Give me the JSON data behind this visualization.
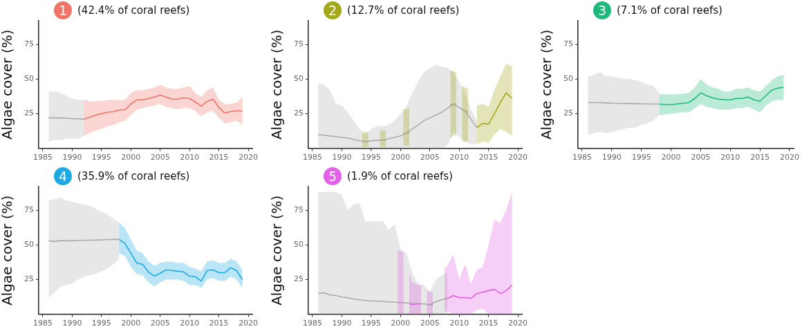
{
  "chart_data": [
    {
      "type": "line",
      "title": "(42.4% of coral reefs)",
      "annotations": [
        "1"
      ],
      "ylabel": "Algae cover (%)",
      "marker": "none",
      "xlim": [
        1984.3,
        2020.7
      ],
      "xticks": [
        1985,
        1990,
        1995,
        2000,
        2005,
        2010,
        2015,
        2020
      ],
      "ylim": [
        0,
        92
      ],
      "yticks": [
        25,
        50,
        75
      ],
      "series": [
        {
          "color": "#aaaaaa",
          "x": [
            1986,
            1987,
            1988,
            1989,
            1990,
            1991,
            1992
          ],
          "values": [
            22,
            22,
            22,
            21.8,
            21.5,
            21.3,
            21
          ],
          "upper": [
            41,
            41,
            40,
            38,
            36,
            35,
            35
          ],
          "lower": [
            5,
            6,
            6,
            7,
            7,
            7,
            9
          ]
        },
        {
          "color": "#f07468",
          "x": [
            1992,
            1993,
            1994,
            1995,
            1996,
            1997,
            1998,
            1999,
            2000,
            2001,
            2002,
            2003,
            2004,
            2005,
            2006,
            2007,
            2008,
            2009,
            2010,
            2011,
            2012,
            2013,
            2014,
            2015,
            2016,
            2017,
            2018,
            2019
          ],
          "values": [
            21,
            22.5,
            24,
            25,
            26,
            26.5,
            27.5,
            28,
            32,
            35,
            35,
            36,
            37,
            38.5,
            37,
            35.5,
            35.5,
            36.5,
            36,
            33.5,
            30.5,
            34,
            35.5,
            29.5,
            25.5,
            26.5,
            27,
            27
          ],
          "upper": [
            35,
            34,
            34,
            34,
            35,
            35,
            35,
            35,
            40,
            42,
            42,
            43,
            44,
            46,
            44,
            43,
            43,
            44,
            45,
            40,
            37,
            42,
            44,
            35,
            32,
            32,
            33,
            37
          ],
          "lower": [
            9,
            11,
            13,
            14,
            16,
            17,
            19,
            20,
            24,
            28,
            29,
            30,
            31,
            32,
            30,
            29,
            28,
            29,
            29,
            27,
            23,
            26,
            27,
            22,
            18,
            19,
            20,
            17
          ]
        }
      ]
    },
    {
      "type": "line",
      "title": "(12.7% of coral reefs)",
      "annotations": [
        "2"
      ],
      "ylabel": "Algae cover (%)",
      "marker": "none",
      "xlim": [
        1984.3,
        2020.7
      ],
      "xticks": [
        1985,
        1990,
        1995,
        2000,
        2005,
        2010,
        2015,
        2020
      ],
      "ylim": [
        0,
        92
      ],
      "yticks": [
        25,
        50,
        75
      ],
      "series": [
        {
          "color": "#aaaaaa",
          "x": [
            1986,
            1987,
            1988,
            1989,
            1990,
            1991,
            1992,
            1993,
            1994,
            1995,
            1996,
            1997,
            1998,
            1999,
            2000,
            2001,
            2002,
            2003,
            2004,
            2005,
            2006,
            2007,
            2008,
            2009,
            2010,
            2011,
            2012,
            2013
          ],
          "values": [
            10,
            9.5,
            9,
            8.5,
            8,
            7.5,
            6.5,
            5.5,
            5,
            5.5,
            5.8,
            6,
            7,
            8,
            9,
            11,
            14,
            17,
            20,
            22,
            24,
            26,
            29,
            32,
            29.5,
            27,
            21,
            15
          ],
          "upper": [
            47,
            46,
            42,
            32,
            31,
            26,
            20,
            14,
            10,
            14,
            16,
            16,
            17,
            20,
            25,
            30,
            40,
            48,
            55,
            58,
            60,
            59,
            58,
            55,
            48,
            40,
            28,
            20
          ],
          "lower": [
            0,
            0,
            0,
            0,
            0,
            0,
            0,
            0,
            0,
            0,
            0,
            0,
            0,
            0,
            0,
            0,
            0,
            0,
            0,
            0,
            0,
            0,
            2,
            12,
            8,
            5,
            3,
            3
          ]
        },
        {
          "color": "#a3a817",
          "x": [
            1993.5,
            1994.5,
            1995,
            1996.5,
            1997.5,
            1998,
            2000.5,
            2001.5,
            2002,
            2008.5,
            2009.5,
            2010,
            2010.5,
            2011.5,
            2012,
            2013,
            2014,
            2015,
            2016,
            2017,
            2018,
            2019
          ],
          "values": [
            5,
            5,
            null,
            6,
            6,
            null,
            10.5,
            11.5,
            null,
            31.5,
            32,
            null,
            28,
            26,
            null,
            15,
            18,
            17.5,
            25,
            33,
            40,
            36
          ],
          "upper": [
            12,
            12,
            null,
            13,
            13,
            null,
            28,
            29,
            null,
            56,
            55,
            null,
            45,
            43,
            null,
            31,
            32,
            30,
            42,
            52,
            61,
            59
          ],
          "lower": [
            1,
            1,
            null,
            1,
            1,
            null,
            2,
            2,
            null,
            8,
            10,
            null,
            5,
            5,
            null,
            3,
            5,
            4,
            10,
            14,
            12,
            9
          ]
        }
      ]
    },
    {
      "type": "line",
      "title": "(7.1% of coral reefs)",
      "annotations": [
        "3"
      ],
      "ylabel": "Algae cover (%)",
      "marker": "none",
      "xlim": [
        1984.3,
        2020.7
      ],
      "xticks": [
        1985,
        1990,
        1995,
        2000,
        2005,
        2010,
        2015,
        2020
      ],
      "ylim": [
        0,
        92
      ],
      "yticks": [
        25,
        50,
        75
      ],
      "series": [
        {
          "color": "#aaaaaa",
          "x": [
            1986,
            1987,
            1988,
            1989,
            1990,
            1991,
            1992,
            1993,
            1994,
            1995,
            1996,
            1997,
            1998
          ],
          "values": [
            33,
            33,
            33,
            32.8,
            32.6,
            32.5,
            32.4,
            32.3,
            32.2,
            32.1,
            32,
            32,
            32
          ],
          "upper": [
            52,
            53,
            55,
            52,
            52,
            51,
            50,
            50,
            49,
            48,
            46,
            45,
            40
          ],
          "lower": [
            10,
            11,
            12,
            11,
            12,
            13,
            14,
            15,
            15,
            17,
            18,
            20,
            24
          ]
        },
        {
          "color": "#1db97b",
          "x": [
            1998,
            1999,
            2000,
            2001,
            2002,
            2003,
            2004,
            2005,
            2006,
            2007,
            2008,
            2009,
            2010,
            2011,
            2012,
            2013,
            2014,
            2015,
            2016,
            2017,
            2018,
            2019
          ],
          "values": [
            32,
            31.5,
            31.5,
            32,
            32.5,
            33,
            36,
            40,
            38,
            36.5,
            35.5,
            35,
            35,
            36,
            36,
            37,
            35,
            34,
            38,
            42,
            43.5,
            44
          ],
          "upper": [
            39,
            39,
            39,
            39,
            39.5,
            40,
            44,
            50,
            46,
            44,
            43,
            41,
            41,
            43,
            43,
            44,
            42,
            41,
            45,
            49,
            52,
            53
          ],
          "lower": [
            24,
            24.5,
            25,
            25.5,
            26,
            26,
            29,
            32,
            30,
            29,
            28,
            28,
            28,
            29,
            29,
            30,
            28,
            26,
            31,
            34,
            35,
            35
          ]
        }
      ]
    },
    {
      "type": "line",
      "title": "(35.9% of coral reefs)",
      "annotations": [
        "4"
      ],
      "ylabel": "Algae cover (%)",
      "marker": "none",
      "xlim": [
        1984.3,
        2020.7
      ],
      "xticks": [
        1985,
        1990,
        1995,
        2000,
        2005,
        2010,
        2015,
        2020
      ],
      "ylim": [
        0,
        92
      ],
      "yticks": [
        25,
        50,
        75
      ],
      "series": [
        {
          "color": "#aaaaaa",
          "x": [
            1986,
            1987,
            1988,
            1989,
            1990,
            1991,
            1992,
            1993,
            1994,
            1995,
            1996,
            1997,
            1998
          ],
          "values": [
            53,
            52.5,
            53,
            53,
            53,
            53.2,
            53.3,
            53.4,
            53.5,
            53.6,
            53.8,
            54,
            54
          ],
          "upper": [
            82,
            83,
            84,
            82,
            81,
            80,
            79,
            78,
            76,
            74,
            72,
            69,
            66
          ],
          "lower": [
            12,
            16,
            20,
            21,
            22,
            25,
            27,
            28,
            29,
            31,
            33,
            36,
            40
          ]
        },
        {
          "color": "#1ba8e3",
          "x": [
            1998,
            1999,
            2000,
            2001,
            2002,
            2003,
            2004,
            2005,
            2006,
            2007,
            2008,
            2009,
            2010,
            2011,
            2012,
            2013,
            2014,
            2015,
            2016,
            2017,
            2018,
            2019
          ],
          "values": [
            54,
            51,
            44,
            37,
            36,
            30.5,
            27.5,
            29.5,
            32,
            31.5,
            31,
            30.5,
            27.5,
            27,
            24,
            31.5,
            32,
            30,
            30,
            33.5,
            31.5,
            25
          ],
          "upper": [
            66,
            62,
            54,
            46,
            44,
            38,
            35,
            37,
            38,
            38,
            37,
            37,
            34,
            33,
            31,
            38,
            39,
            37,
            37,
            40,
            38,
            32
          ],
          "lower": [
            44,
            42,
            34,
            29,
            28,
            23,
            20,
            23,
            25,
            25,
            25,
            24,
            21,
            21,
            19,
            25,
            26,
            24,
            24,
            27,
            25,
            19
          ]
        }
      ]
    },
    {
      "type": "line",
      "title": "(1.9% of coral reefs)",
      "annotations": [
        "5"
      ],
      "ylabel": "Algae cover (%)",
      "marker": "none",
      "xlim": [
        1984.3,
        2020.7
      ],
      "xticks": [
        1985,
        1990,
        1995,
        2000,
        2005,
        2010,
        2015,
        2020
      ],
      "ylim": [
        0,
        92
      ],
      "yticks": [
        25,
        50,
        75
      ],
      "series": [
        {
          "color": "#aaaaaa",
          "x": [
            1986,
            1987,
            1988,
            1989,
            1990,
            1991,
            1992,
            1993,
            1994,
            1995,
            1996,
            1997,
            1998,
            1999,
            2000,
            2001,
            2002,
            2003,
            2004,
            2005,
            2006,
            2007,
            2008
          ],
          "values": [
            15,
            15.5,
            14,
            13.5,
            12.5,
            12,
            11,
            10.5,
            10,
            9.5,
            9.5,
            9.2,
            9,
            8.7,
            8.5,
            8.2,
            8,
            7.8,
            7.5,
            7,
            9,
            10.5,
            11.5
          ],
          "upper": [
            88,
            88,
            88,
            88,
            86,
            75,
            79,
            80,
            67,
            67,
            67,
            67,
            61,
            65,
            47,
            44,
            30,
            22,
            21,
            16,
            25,
            28,
            30
          ],
          "lower": [
            0,
            0,
            0,
            0,
            0,
            0,
            0,
            0,
            0,
            0,
            0,
            0,
            0,
            0,
            0,
            0,
            0,
            0,
            0,
            0,
            0,
            0,
            0
          ]
        },
        {
          "color": "#e261e6",
          "x": [
            1999.5,
            2000.5,
            2001,
            2001.5,
            2002,
            2003,
            2003.5,
            2004,
            2004.5,
            2005.5,
            2006,
            2007.5,
            2008,
            2009,
            2010,
            2011,
            2012,
            2013,
            2014,
            2015,
            2016,
            2017,
            2018,
            2019
          ],
          "values": [
            8.5,
            8.3,
            null,
            7.5,
            7,
            7.5,
            7.3,
            null,
            7,
            6.8,
            null,
            11,
            11.5,
            13.5,
            12,
            12,
            11.5,
            15,
            16,
            17,
            18,
            15,
            17,
            21
          ],
          "upper": [
            46,
            45,
            null,
            30,
            23,
            21,
            21,
            null,
            17,
            16,
            null,
            33,
            35,
            43,
            25,
            36,
            22,
            32,
            34,
            50,
            68,
            66,
            75,
            88
          ],
          "lower": [
            0,
            0,
            null,
            0,
            0,
            0,
            0,
            null,
            0,
            0,
            null,
            2,
            2,
            0,
            0,
            0,
            0,
            3,
            4,
            0,
            0,
            0,
            0,
            0
          ]
        }
      ]
    }
  ]
}
